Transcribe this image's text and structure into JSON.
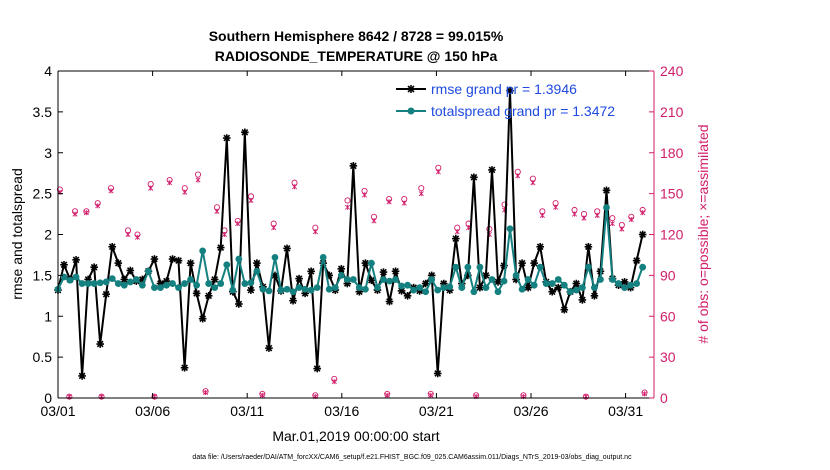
{
  "chart_data": {
    "type": "line",
    "title_line1": "Southern Hemisphere 8642 / 8728 = 99.015%",
    "title_line2": "RADIOSONDE_TEMPERATURE @ 150 hPa",
    "xlabel": "Mar.01,2019 00:00:00 start",
    "ylabel_left": "rmse and totalspread",
    "ylabel_right": "# of obs: o=possible; ×=assimilated",
    "footnote": "data file: /Users/raeder/DAI/ATM_forcXX/CAM6_setup/f.e21.FHIST_BGC.f09_025.CAM6assim.011/Diags_NTrS_2019-03/obs_diag_output.nc",
    "xlim": [
      1,
      32.5
    ],
    "ylim_left": [
      0,
      4
    ],
    "ylim_right": [
      0,
      240
    ],
    "x_ticks": [
      1,
      6,
      11,
      16,
      21,
      26,
      31
    ],
    "x_tick_labels": [
      "03/01",
      "03/06",
      "03/11",
      "03/16",
      "03/21",
      "03/26",
      "03/31"
    ],
    "y_left_ticks": [
      0,
      0.5,
      1,
      1.5,
      2,
      2.5,
      3,
      3.5,
      4
    ],
    "y_left_tick_labels": [
      "0",
      "0.5",
      "1",
      "1.5",
      "2",
      "2.5",
      "3",
      "3.5",
      "4"
    ],
    "y_right_ticks": [
      0,
      30,
      60,
      90,
      120,
      150,
      180,
      210,
      240
    ],
    "y_right_tick_labels": [
      "0",
      "30",
      "60",
      "90",
      "120",
      "150",
      "180",
      "210",
      "240"
    ],
    "legend_position": "top-right",
    "series": [
      {
        "name": "rmse grand pr = 1.3946",
        "color": "#000000",
        "marker": "asterisk",
        "values": [
          1.32,
          1.63,
          1.45,
          1.69,
          0.27,
          1.45,
          1.6,
          0.66,
          1.27,
          1.85,
          1.65,
          1.45,
          1.56,
          1.43,
          1.45,
          1.55,
          1.7,
          1.4,
          1.43,
          1.7,
          1.68,
          0.37,
          1.65,
          1.28,
          0.97,
          1.25,
          1.45,
          1.84,
          3.18,
          1.3,
          1.15,
          3.25,
          1.32,
          1.65,
          1.36,
          0.61,
          1.5,
          1.31,
          1.83,
          1.19,
          1.46,
          1.28,
          1.55,
          0.36,
          1.65,
          1.5,
          1.32,
          1.58,
          1.4,
          2.84,
          1.3,
          1.65,
          1.44,
          1.32,
          1.54,
          1.18,
          1.55,
          1.31,
          1.25,
          1.35,
          1.31,
          1.4,
          1.5,
          0.3,
          1.4,
          1.32,
          1.95,
          1.4,
          1.5,
          2.7,
          1.35,
          1.5,
          2.79,
          1.42,
          1.62,
          3.76,
          1.45,
          1.65,
          1.35,
          1.65,
          1.85,
          1.42,
          1.3,
          1.35,
          1.08,
          1.3,
          1.4,
          1.2,
          1.85,
          1.25,
          1.55,
          2.54,
          1.46,
          1.38,
          1.42,
          1.35,
          1.68,
          2.0
        ]
      },
      {
        "name": "totalspread grand pr = 1.3472",
        "color": "#158080",
        "marker": "dot",
        "values": [
          1.33,
          1.48,
          1.44,
          1.48,
          1.4,
          1.4,
          1.4,
          1.41,
          1.42,
          1.46,
          1.4,
          1.38,
          1.42,
          1.45,
          1.38,
          1.55,
          1.35,
          1.35,
          1.38,
          1.4,
          1.35,
          1.4,
          1.45,
          1.38,
          1.8,
          1.4,
          1.35,
          1.4,
          1.63,
          1.32,
          1.7,
          1.4,
          1.41,
          1.55,
          1.33,
          1.31,
          1.72,
          1.32,
          1.33,
          1.3,
          1.35,
          1.33,
          1.32,
          1.35,
          1.72,
          1.33,
          1.35,
          1.5,
          1.45,
          1.45,
          1.35,
          1.33,
          1.65,
          1.35,
          1.45,
          1.43,
          1.45,
          1.37,
          1.38,
          1.32,
          1.35,
          1.3,
          1.45,
          1.32,
          1.35,
          1.36,
          1.6,
          1.35,
          1.6,
          1.3,
          1.6,
          1.35,
          1.45,
          1.3,
          1.43,
          2.07,
          1.5,
          1.33,
          1.45,
          1.38,
          1.6,
          1.4,
          1.4,
          1.45,
          1.38,
          1.3,
          1.32,
          1.35,
          1.6,
          1.35,
          1.45,
          2.33,
          1.45,
          1.4,
          1.35,
          1.38,
          1.4,
          1.6
        ]
      }
    ],
    "obs_possible": [
      {
        "x": 1.1,
        "n": 153
      },
      {
        "x": 1.9,
        "n": 137
      },
      {
        "x": 2.5,
        "n": 137
      },
      {
        "x": 3.1,
        "n": 143
      },
      {
        "x": 3.8,
        "n": 154
      },
      {
        "x": 4.7,
        "n": 123
      },
      {
        "x": 5.2,
        "n": 120
      },
      {
        "x": 5.9,
        "n": 157
      },
      {
        "x": 6.9,
        "n": 160
      },
      {
        "x": 7.7,
        "n": 154
      },
      {
        "x": 8.4,
        "n": 164
      },
      {
        "x": 9.4,
        "n": 140
      },
      {
        "x": 9.8,
        "n": 123
      },
      {
        "x": 10.5,
        "n": 130
      },
      {
        "x": 11.2,
        "n": 148
      },
      {
        "x": 12.4,
        "n": 128
      },
      {
        "x": 13.5,
        "n": 158
      },
      {
        "x": 14.6,
        "n": 125
      },
      {
        "x": 16.3,
        "n": 145
      },
      {
        "x": 17.2,
        "n": 152
      },
      {
        "x": 17.7,
        "n": 133
      },
      {
        "x": 18.5,
        "n": 146
      },
      {
        "x": 19.3,
        "n": 146
      },
      {
        "x": 20.2,
        "n": 154
      },
      {
        "x": 21.1,
        "n": 169
      },
      {
        "x": 22.1,
        "n": 125
      },
      {
        "x": 22.7,
        "n": 128
      },
      {
        "x": 23.8,
        "n": 124
      },
      {
        "x": 24.6,
        "n": 142
      },
      {
        "x": 25.3,
        "n": 166
      },
      {
        "x": 26.1,
        "n": 161
      },
      {
        "x": 26.6,
        "n": 137
      },
      {
        "x": 27.3,
        "n": 143
      },
      {
        "x": 28.3,
        "n": 138
      },
      {
        "x": 28.8,
        "n": 135
      },
      {
        "x": 29.5,
        "n": 137
      },
      {
        "x": 30.3,
        "n": 132
      },
      {
        "x": 30.8,
        "n": 127
      },
      {
        "x": 31.3,
        "n": 133
      },
      {
        "x": 31.9,
        "n": 138
      },
      {
        "x": 1.6,
        "n": 1
      },
      {
        "x": 3.3,
        "n": 1
      },
      {
        "x": 6.1,
        "n": 1
      },
      {
        "x": 8.8,
        "n": 5
      },
      {
        "x": 11.8,
        "n": 3
      },
      {
        "x": 14.6,
        "n": 2
      },
      {
        "x": 15.6,
        "n": 14
      },
      {
        "x": 18.4,
        "n": 3
      },
      {
        "x": 20.7,
        "n": 3
      },
      {
        "x": 23.1,
        "n": 2
      },
      {
        "x": 25.6,
        "n": 2
      },
      {
        "x": 28.9,
        "n": 1
      },
      {
        "x": 32.0,
        "n": 4
      }
    ],
    "obs_assimilated": [
      {
        "x": 1.1,
        "n": 151
      },
      {
        "x": 1.9,
        "n": 135
      },
      {
        "x": 2.5,
        "n": 136
      },
      {
        "x": 3.1,
        "n": 141
      },
      {
        "x": 3.8,
        "n": 152
      },
      {
        "x": 4.7,
        "n": 120
      },
      {
        "x": 5.2,
        "n": 118
      },
      {
        "x": 5.9,
        "n": 154
      },
      {
        "x": 6.9,
        "n": 158
      },
      {
        "x": 7.7,
        "n": 151
      },
      {
        "x": 8.4,
        "n": 160
      },
      {
        "x": 9.4,
        "n": 137
      },
      {
        "x": 9.8,
        "n": 120
      },
      {
        "x": 10.5,
        "n": 128
      },
      {
        "x": 11.2,
        "n": 145
      },
      {
        "x": 12.4,
        "n": 125
      },
      {
        "x": 13.5,
        "n": 155
      },
      {
        "x": 14.6,
        "n": 122
      },
      {
        "x": 16.3,
        "n": 140
      },
      {
        "x": 17.2,
        "n": 149
      },
      {
        "x": 17.7,
        "n": 130
      },
      {
        "x": 18.5,
        "n": 144
      },
      {
        "x": 19.3,
        "n": 143
      },
      {
        "x": 20.2,
        "n": 150
      },
      {
        "x": 21.1,
        "n": 166
      },
      {
        "x": 22.1,
        "n": 122
      },
      {
        "x": 22.7,
        "n": 125
      },
      {
        "x": 23.8,
        "n": 120
      },
      {
        "x": 24.6,
        "n": 138
      },
      {
        "x": 25.3,
        "n": 163
      },
      {
        "x": 26.1,
        "n": 158
      },
      {
        "x": 26.6,
        "n": 134
      },
      {
        "x": 27.3,
        "n": 140
      },
      {
        "x": 28.3,
        "n": 135
      },
      {
        "x": 28.8,
        "n": 132
      },
      {
        "x": 29.5,
        "n": 134
      },
      {
        "x": 30.3,
        "n": 128
      },
      {
        "x": 30.8,
        "n": 124
      },
      {
        "x": 31.3,
        "n": 131
      },
      {
        "x": 31.9,
        "n": 136
      },
      {
        "x": 1.6,
        "n": 1
      },
      {
        "x": 3.3,
        "n": 1
      },
      {
        "x": 6.1,
        "n": 1
      },
      {
        "x": 8.8,
        "n": 4
      },
      {
        "x": 11.8,
        "n": 2
      },
      {
        "x": 14.6,
        "n": 1
      },
      {
        "x": 15.6,
        "n": 12
      },
      {
        "x": 18.4,
        "n": 2
      },
      {
        "x": 20.7,
        "n": 2
      },
      {
        "x": 23.1,
        "n": 1
      },
      {
        "x": 25.6,
        "n": 1
      },
      {
        "x": 28.9,
        "n": 1
      },
      {
        "x": 32.0,
        "n": 3
      }
    ]
  },
  "colors": {
    "axis": "#000000",
    "right_axis": "#d11e6b",
    "legend_text": "#1f4ae0",
    "rmse": "#000000",
    "spread": "#158080"
  }
}
